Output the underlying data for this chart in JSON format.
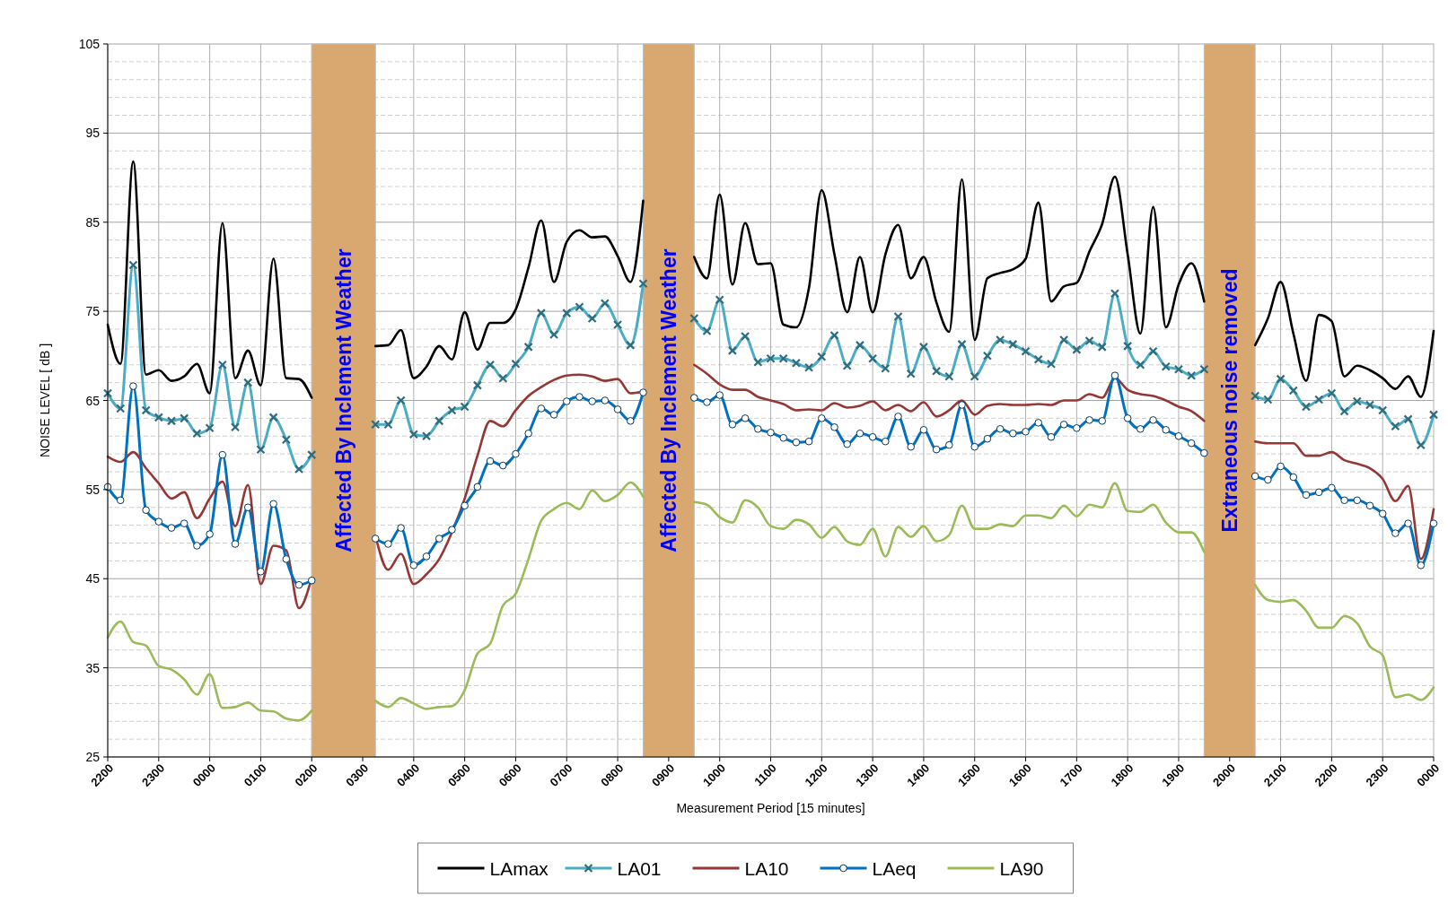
{
  "chart_data": {
    "type": "line",
    "xlabel": "Measurement Period  [15 minutes]",
    "ylabel": "NOISE LEVEL  [ dB ]",
    "categories": [
      "2200",
      null,
      null,
      null,
      "2300",
      null,
      null,
      null,
      "0000",
      null,
      null,
      null,
      "0100",
      null,
      null,
      null,
      "0200",
      null,
      null,
      null,
      "0300",
      null,
      null,
      null,
      "0400",
      null,
      null,
      null,
      "0500",
      null,
      null,
      null,
      "0600",
      null,
      null,
      null,
      "0700",
      null,
      null,
      null,
      "0800",
      null,
      null,
      null,
      "0900",
      null,
      null,
      null,
      "1000",
      null,
      null,
      null,
      "1100",
      null,
      null,
      null,
      "1200",
      null,
      null,
      null,
      "1300",
      null,
      null,
      null,
      "1400",
      null,
      null,
      null,
      "1500",
      null,
      null,
      null,
      "1600",
      null,
      null,
      null,
      "1700",
      null,
      null,
      null,
      "1800",
      null,
      null,
      null,
      "1900",
      null,
      null,
      null,
      "2000",
      null,
      null,
      null,
      "2100",
      null,
      null,
      null,
      "2200",
      null,
      null,
      null,
      "2300",
      null,
      null,
      null,
      "0000"
    ],
    "series": [
      {
        "name": "LAmax",
        "color": "#000000",
        "marker": "none",
        "values": [
          73.5,
          69.1,
          91.8,
          67.9,
          68.4,
          67.2,
          67.7,
          69.1,
          65.8,
          84.9,
          67.5,
          70.6,
          66.7,
          80.9,
          67.5,
          67.4,
          65.3,
          null,
          null,
          null,
          null,
          71.1,
          71.2,
          72.9,
          67.5,
          68.8,
          71.1,
          69.6,
          74.9,
          70.7,
          73.7,
          73.7,
          75.2,
          79.9,
          85.2,
          78.3,
          82.8,
          84.1,
          83.3,
          83.4,
          81.2,
          78.3,
          87.4,
          null,
          null,
          null,
          81.1,
          78.7,
          88.1,
          78.0,
          84.9,
          80.3,
          80.4,
          73.5,
          73.2,
          77.6,
          88.6,
          81.4,
          74.9,
          81.1,
          74.9,
          81.4,
          84.7,
          78.7,
          81.1,
          76.0,
          72.7,
          89.8,
          71.8,
          78.7,
          79.3,
          79.7,
          80.9,
          87.2,
          76.1,
          77.8,
          78.2,
          81.7,
          84.8,
          90.1,
          81.4,
          72.5,
          86.7,
          73.2,
          78.0,
          80.4,
          76.1,
          null,
          null,
          null,
          71.2,
          74.2,
          78.3,
          72.5,
          67.2,
          74.6,
          73.9,
          67.7,
          68.9,
          68.4,
          67.5,
          66.3,
          67.7,
          65.4,
          72.8
        ]
      },
      {
        "name": "LA01",
        "color": "#4bacc6",
        "marker": "cross",
        "values": [
          65.8,
          64.1,
          80.2,
          63.9,
          63.1,
          62.7,
          63.0,
          61.3,
          61.9,
          69.0,
          62.0,
          67.0,
          59.5,
          63.1,
          60.6,
          57.3,
          58.9,
          null,
          null,
          null,
          null,
          62.3,
          62.3,
          65.0,
          61.2,
          61.0,
          62.7,
          63.9,
          64.3,
          66.7,
          69.0,
          67.5,
          69.1,
          71.0,
          74.8,
          72.4,
          74.8,
          75.5,
          74.2,
          75.9,
          73.5,
          71.2,
          78.1,
          null,
          null,
          null,
          74.2,
          72.8,
          76.3,
          70.6,
          72.2,
          69.3,
          69.7,
          69.7,
          69.2,
          68.7,
          69.9,
          72.3,
          68.9,
          71.2,
          69.7,
          68.6,
          74.4,
          68.0,
          71.0,
          68.3,
          67.7,
          71.3,
          67.7,
          70.0,
          71.8,
          71.3,
          70.5,
          69.6,
          69.1,
          71.8,
          70.7,
          71.7,
          71.0,
          77.0,
          71.1,
          69.0,
          70.5,
          68.8,
          68.5,
          67.8,
          68.5,
          null,
          null,
          null,
          65.5,
          65.1,
          67.4,
          66.1,
          64.3,
          65.1,
          65.8,
          63.8,
          64.9,
          64.5,
          63.9,
          62.1,
          62.9,
          60.0,
          63.4
        ]
      },
      {
        "name": "LA10",
        "color": "#953735",
        "marker": "none",
        "values": [
          58.7,
          58.1,
          59.2,
          57.4,
          55.7,
          54.0,
          54.7,
          51.8,
          54.0,
          55.9,
          50.9,
          55.5,
          44.4,
          48.7,
          48.2,
          41.7,
          45.1,
          null,
          null,
          null,
          null,
          49.8,
          46.0,
          47.8,
          44.4,
          45.5,
          47.2,
          50.2,
          54.0,
          58.8,
          62.7,
          62.1,
          63.9,
          65.5,
          66.5,
          67.3,
          67.8,
          67.9,
          67.7,
          67.2,
          67.4,
          65.8,
          66.0,
          null,
          null,
          null,
          69.0,
          68.0,
          66.8,
          66.2,
          66.2,
          65.4,
          65.0,
          64.6,
          63.9,
          64.0,
          63.9,
          64.7,
          64.2,
          64.4,
          64.9,
          63.9,
          64.5,
          63.8,
          64.8,
          63.2,
          63.9,
          65.0,
          63.4,
          64.4,
          64.6,
          64.5,
          64.5,
          64.6,
          64.5,
          65.0,
          65.0,
          65.7,
          65.3,
          67.5,
          66.2,
          65.7,
          65.5,
          65.0,
          64.3,
          63.8,
          62.7,
          null,
          null,
          null,
          60.4,
          60.2,
          60.2,
          60.2,
          58.8,
          58.8,
          59.2,
          58.3,
          57.9,
          57.4,
          56.2,
          53.7,
          55.4,
          47.2,
          52.8
        ]
      },
      {
        "name": "LAeq",
        "color": "#0070c0",
        "marker": "circle",
        "values": [
          55.3,
          53.8,
          66.6,
          52.7,
          51.4,
          50.7,
          51.2,
          48.7,
          50.0,
          58.9,
          48.9,
          53.0,
          45.8,
          53.4,
          47.2,
          44.3,
          44.8,
          null,
          null,
          null,
          null,
          49.5,
          48.9,
          50.7,
          46.5,
          47.5,
          49.5,
          50.5,
          53.2,
          55.3,
          58.2,
          57.7,
          59.0,
          61.3,
          64.1,
          63.4,
          64.9,
          65.4,
          64.9,
          65.0,
          64.0,
          62.7,
          65.9,
          null,
          null,
          null,
          65.3,
          64.8,
          65.6,
          62.3,
          63.0,
          61.8,
          61.4,
          60.8,
          60.3,
          60.4,
          63.0,
          62.0,
          60.1,
          61.3,
          60.9,
          60.4,
          63.2,
          59.8,
          61.7,
          59.5,
          60.0,
          64.5,
          59.8,
          60.7,
          61.8,
          61.3,
          61.5,
          62.5,
          60.9,
          62.3,
          61.9,
          62.8,
          62.7,
          67.8,
          63.0,
          61.8,
          62.8,
          61.7,
          61.0,
          60.2,
          59.1,
          null,
          null,
          null,
          56.5,
          56.1,
          57.6,
          56.4,
          54.4,
          54.7,
          55.2,
          53.8,
          53.8,
          53.2,
          52.3,
          50.1,
          51.2,
          46.5,
          51.2
        ]
      },
      {
        "name": "LA90",
        "color": "#9bbb59",
        "marker": "none",
        "values": [
          38.4,
          40.2,
          37.9,
          37.5,
          35.2,
          34.8,
          33.7,
          32.0,
          34.3,
          30.5,
          30.6,
          31.1,
          30.2,
          30.1,
          29.3,
          29.1,
          30.2,
          null,
          null,
          null,
          null,
          31.3,
          30.6,
          31.6,
          31.0,
          30.4,
          30.6,
          30.7,
          32.5,
          36.6,
          37.7,
          42.0,
          43.3,
          47.2,
          51.5,
          52.8,
          53.5,
          52.8,
          54.9,
          53.7,
          54.4,
          55.8,
          54.2,
          null,
          null,
          null,
          53.6,
          53.3,
          51.9,
          51.3,
          53.8,
          53.0,
          50.9,
          50.6,
          51.6,
          51.1,
          49.6,
          50.8,
          49.2,
          48.8,
          50.6,
          47.5,
          50.8,
          49.7,
          50.9,
          49.2,
          49.9,
          53.2,
          50.6,
          50.6,
          51.1,
          50.9,
          52.1,
          52.1,
          51.8,
          53.2,
          52.0,
          53.3,
          53.0,
          55.7,
          52.6,
          52.5,
          53.3,
          51.3,
          50.2,
          50.2,
          48.0,
          null,
          null,
          null,
          44.3,
          42.6,
          42.4,
          42.6,
          41.4,
          39.5,
          39.5,
          40.8,
          40.0,
          37.4,
          36.4,
          31.7,
          32.0,
          31.4,
          32.8
        ]
      }
    ],
    "ylim": [
      25,
      105
    ],
    "yticks": [
      25,
      35,
      45,
      55,
      65,
      75,
      85,
      95,
      105
    ],
    "annotations": [
      "Affected By Inclement Weather",
      "Affected By Inclement Weather",
      "Extraneous noise removed"
    ],
    "grid": true,
    "legend": "bottom"
  }
}
